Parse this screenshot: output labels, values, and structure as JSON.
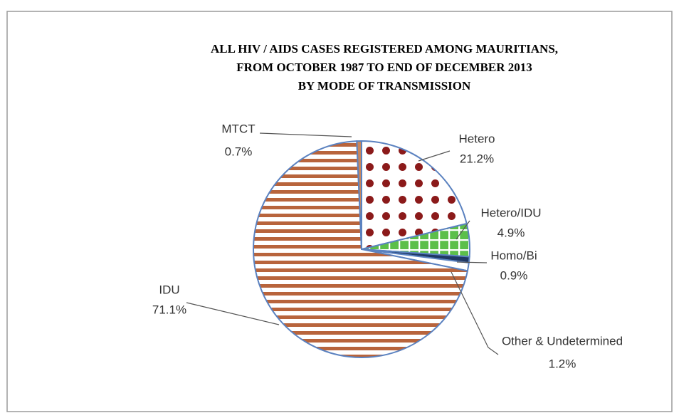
{
  "chart_data": {
    "type": "pie",
    "title": [
      "ALL  HIV / AIDS  CASES  REGISTERED  AMONG  MAURITIANS,",
      "FROM  OCTOBER 1987 TO  END OF DECEMBER 2013",
      "BY MODE OF TRANSMISSION"
    ],
    "categories": [
      "Hetero",
      "Hetero/IDU",
      "Homo/Bi",
      "Other & Undetermined",
      "IDU",
      "MTCT"
    ],
    "values": [
      21.2,
      4.9,
      0.9,
      1.2,
      71.1,
      0.7
    ],
    "value_labels": [
      "21.2%",
      "4.9%",
      "0.9%",
      "1.2%",
      "71.1%",
      "0.7%"
    ],
    "colors": [
      "#8b1a1a",
      "#5cbf4a",
      "#1f3864",
      "#ffffff",
      "#b8643c",
      "#c8875e"
    ],
    "patterns": [
      "dots",
      "grid",
      "solid",
      "solid",
      "stripes",
      "solid"
    ]
  }
}
